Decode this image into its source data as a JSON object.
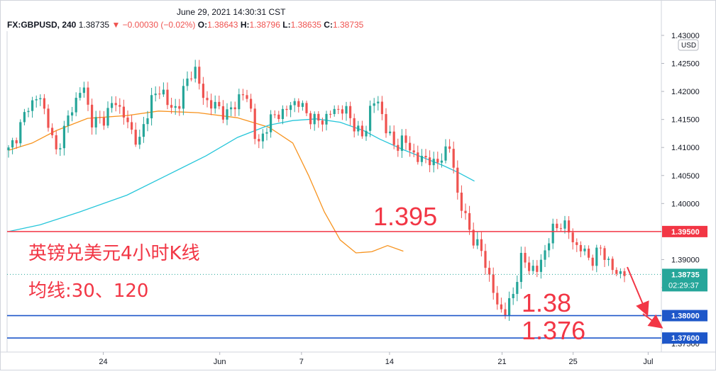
{
  "header": {
    "datetime": "June 29, 2021 14:30:31 CST",
    "symbol": "FX:GBPUSD, 240",
    "last": "1.38735",
    "change": "▼ −0.00030 (−0.02%)",
    "open_label": "O:",
    "open": "1.38643",
    "high_label": "H:",
    "high": "1.38796",
    "low_label": "L:",
    "low": "1.38635",
    "close_label": "C:",
    "close": "1.38735"
  },
  "chart_data": {
    "type": "candlestick",
    "currency": "USD",
    "ylim": [
      1.3735,
      1.4305
    ],
    "y_ticks": [
      "1.37500",
      "1.38000",
      "1.38500",
      "1.39000",
      "1.39500",
      "1.40000",
      "1.40500",
      "1.41000",
      "1.41500",
      "1.42000",
      "1.42500",
      "1.43000"
    ],
    "x_ticks": [
      "24",
      "Jun",
      "7",
      "14",
      "21",
      "25",
      "Jul"
    ],
    "horizontal_levels": [
      {
        "price": 1.395,
        "label": "1.39500",
        "color": "#f23645"
      },
      {
        "price": 1.38,
        "label": "1.38000",
        "color": "#1e57c9"
      },
      {
        "price": 1.376,
        "label": "1.37600",
        "color": "#1e57c9"
      }
    ],
    "last_price_tag": {
      "price": 1.38735,
      "label": "1.38735",
      "countdown": "02:29:37",
      "color": "#26a69a"
    },
    "moving_averages": [
      {
        "period": 30,
        "color": "#f7931e",
        "points": [
          [
            0,
            1.4095
          ],
          [
            0.06,
            1.4108
          ],
          [
            0.12,
            1.413
          ],
          [
            0.2,
            1.4152
          ],
          [
            0.3,
            1.4157
          ],
          [
            0.38,
            1.4165
          ],
          [
            0.48,
            1.4162
          ],
          [
            0.58,
            1.4153
          ],
          [
            0.66,
            1.4136
          ],
          [
            0.72,
            1.4108
          ],
          [
            0.76,
            1.405
          ],
          [
            0.8,
            1.3985
          ],
          [
            0.84,
            1.3935
          ],
          [
            0.88,
            1.3912
          ],
          [
            0.92,
            1.3914
          ],
          [
            0.96,
            1.3925
          ],
          [
            1.0,
            1.3915
          ]
        ]
      },
      {
        "period": 120,
        "color": "#26c6da",
        "points": [
          [
            0,
            1.395
          ],
          [
            0.08,
            1.3962
          ],
          [
            0.18,
            1.3985
          ],
          [
            0.3,
            1.4015
          ],
          [
            0.4,
            1.405
          ],
          [
            0.5,
            1.4085
          ],
          [
            0.58,
            1.4118
          ],
          [
            0.66,
            1.414
          ],
          [
            0.72,
            1.4148
          ],
          [
            0.78,
            1.4151
          ],
          [
            0.84,
            1.4145
          ],
          [
            0.9,
            1.413
          ],
          [
            0.94,
            1.4115
          ],
          [
            1.0,
            1.4096
          ],
          [
            1.05,
            1.4082
          ],
          [
            1.1,
            1.4068
          ],
          [
            1.14,
            1.4055
          ],
          [
            1.18,
            1.404
          ]
        ]
      }
    ],
    "price_anchors": [
      [
        0,
        1.4095
      ],
      [
        0.02,
        1.412
      ],
      [
        0.05,
        1.4175
      ],
      [
        0.08,
        1.419
      ],
      [
        0.1,
        1.4145
      ],
      [
        0.12,
        1.409
      ],
      [
        0.16,
        1.417
      ],
      [
        0.19,
        1.421
      ],
      [
        0.21,
        1.4145
      ],
      [
        0.24,
        1.415
      ],
      [
        0.27,
        1.4185
      ],
      [
        0.3,
        1.4145
      ],
      [
        0.33,
        1.4105
      ],
      [
        0.36,
        1.4185
      ],
      [
        0.39,
        1.4205
      ],
      [
        0.41,
        1.4165
      ],
      [
        0.43,
        1.4175
      ],
      [
        0.45,
        1.4215
      ],
      [
        0.47,
        1.4245
      ],
      [
        0.49,
        1.4195
      ],
      [
        0.51,
        1.4175
      ],
      [
        0.53,
        1.4175
      ],
      [
        0.55,
        1.4155
      ],
      [
        0.57,
        1.4175
      ],
      [
        0.59,
        1.4195
      ],
      [
        0.61,
        1.4185
      ],
      [
        0.63,
        1.4095
      ],
      [
        0.65,
        1.4135
      ],
      [
        0.67,
        1.4155
      ],
      [
        0.7,
        1.4165
      ],
      [
        0.73,
        1.4185
      ],
      [
        0.76,
        1.4155
      ],
      [
        0.79,
        1.4145
      ],
      [
        0.82,
        1.4165
      ],
      [
        0.85,
        1.417
      ],
      [
        0.88,
        1.4135
      ],
      [
        0.9,
        1.4115
      ],
      [
        0.92,
        1.4185
      ],
      [
        0.94,
        1.4175
      ],
      [
        0.96,
        1.4125
      ],
      [
        0.98,
        1.41
      ],
      [
        1.0,
        1.4115
      ],
      [
        1.02,
        1.4095
      ],
      [
        1.04,
        1.4075
      ],
      [
        1.06,
        1.4085
      ],
      [
        1.08,
        1.4065
      ],
      [
        1.1,
        1.409
      ],
      [
        1.12,
        1.41
      ],
      [
        1.14,
        1.4005
      ],
      [
        1.16,
        1.397
      ],
      [
        1.18,
        1.393
      ],
      [
        1.2,
        1.3915
      ],
      [
        1.22,
        1.386
      ],
      [
        1.24,
        1.3815
      ],
      [
        1.26,
        1.3805
      ],
      [
        1.28,
        1.3845
      ],
      [
        1.3,
        1.3905
      ],
      [
        1.32,
        1.3885
      ],
      [
        1.34,
        1.388
      ],
      [
        1.36,
        1.392
      ],
      [
        1.38,
        1.3955
      ],
      [
        1.4,
        1.3965
      ],
      [
        1.42,
        1.395
      ],
      [
        1.44,
        1.392
      ],
      [
        1.46,
        1.3915
      ],
      [
        1.48,
        1.3895
      ],
      [
        1.5,
        1.3925
      ],
      [
        1.52,
        1.389
      ],
      [
        1.54,
        1.3878
      ],
      [
        1.56,
        1.3874
      ]
    ],
    "annotations": {
      "title_cn": "英镑兑美元4小时K线",
      "ma_cn": "均线:30、120",
      "level_labels": [
        "1.395",
        "1.38",
        "1.376"
      ]
    }
  }
}
